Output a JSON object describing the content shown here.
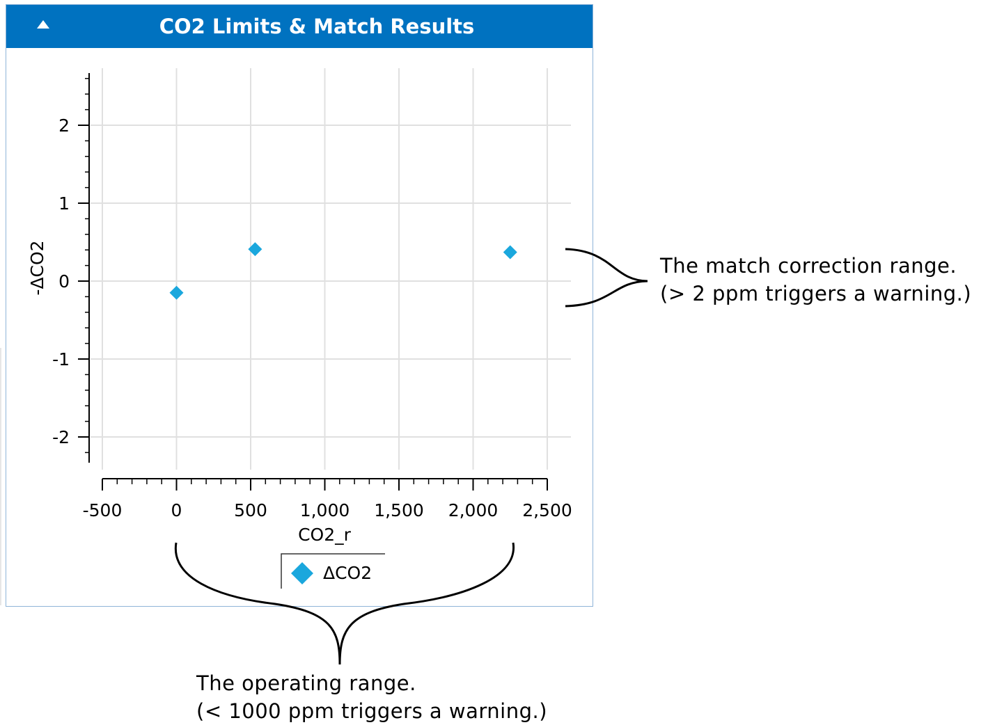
{
  "panel": {
    "title": "CO2 Limits & Match Results",
    "collapse_icon": "triangle-up-icon",
    "header_color": "#0072c0"
  },
  "chart_data": {
    "type": "scatter",
    "title": "",
    "xlabel": "CO2_r",
    "ylabel": "-ΔCO2",
    "xlim": [
      -500,
      2500
    ],
    "ylim": [
      -2.3,
      2.6
    ],
    "x_ticks": [
      -500,
      0,
      500,
      1000,
      1500,
      2000,
      2500
    ],
    "x_tick_labels": [
      "-500",
      "0",
      "500",
      "1,000",
      "1,500",
      "2,000",
      "2,500"
    ],
    "y_ticks": [
      -2,
      -1,
      0,
      1,
      2
    ],
    "y_tick_labels": [
      "-2",
      "-1",
      "0",
      "1",
      "2"
    ],
    "grid": true,
    "legend_position": "bottom-center",
    "series": [
      {
        "name": "ΔCO2",
        "color": "#1aa7dd",
        "marker": "diamond",
        "points": [
          {
            "x": 0,
            "y": -0.15
          },
          {
            "x": 530,
            "y": 0.41
          },
          {
            "x": 2250,
            "y": 0.37
          }
        ]
      }
    ]
  },
  "annotations": {
    "match_range": {
      "line1": "The match correction range.",
      "line2": "(> 2 ppm triggers a warning.)"
    },
    "operating_range": {
      "line1": "The operating range.",
      "line2": "(< 1000 ppm triggers a warning.)"
    }
  }
}
